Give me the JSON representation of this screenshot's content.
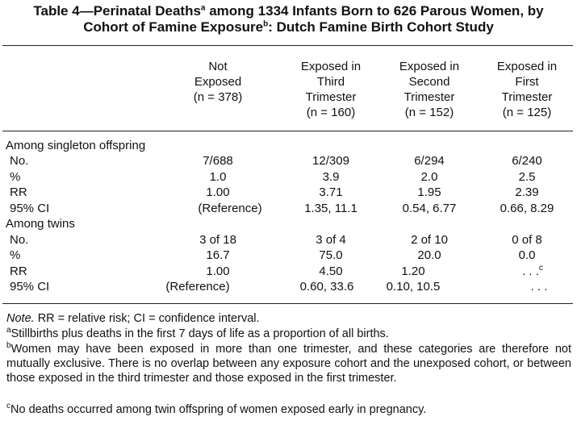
{
  "table": {
    "title_line1_pre": "Table 4—Perinatal Deaths",
    "title_sup_a": "a",
    "title_line1_post": " among 1334 Infants Born to 626 Parous Women, by",
    "title_line2_pre": "Cohort of Famine Exposure",
    "title_sup_b": "b",
    "title_line2_post": ": Dutch Famine Birth Cohort Study",
    "columns": [
      {
        "l1": "",
        "l2": "Not",
        "l3": "Exposed",
        "n": "(n = 378)"
      },
      {
        "l1": "Exposed in",
        "l2": "Third",
        "l3": "Trimester",
        "n": "(n = 160)"
      },
      {
        "l1": "Exposed in",
        "l2": "Second",
        "l3": "Trimester",
        "n": "(n = 152)"
      },
      {
        "l1": "Exposed in",
        "l2": "First",
        "l3": "Trimester",
        "n": "(n = 125)"
      }
    ],
    "sections": [
      {
        "label": "Among singleton offspring",
        "rows": [
          {
            "label": "No.",
            "values": [
              "7/688",
              "12/309",
              "6/294",
              "6/240"
            ]
          },
          {
            "label": "%",
            "values": [
              "1.0",
              "3.9",
              "2.0",
              "2.5"
            ]
          },
          {
            "label": "RR",
            "values": [
              "1.00",
              "3.71",
              "1.95",
              "2.39"
            ]
          },
          {
            "label": "95% CI",
            "values": [
              "(Reference)",
              "1.35, 11.1",
              "0.54, 6.77",
              "0.66, 8.29"
            ]
          }
        ]
      },
      {
        "label": "Among twins",
        "rows": [
          {
            "label": "No.",
            "values": [
              "3 of 18",
              "3 of 4",
              "2 of 10",
              "0 of 8"
            ]
          },
          {
            "label": "%",
            "values": [
              "16.7",
              "75.0",
              "20.0",
              "0.0"
            ]
          },
          {
            "label": "RR",
            "values": [
              "1.00",
              "4.50",
              "1.20",
              ". . ."
            ],
            "sup_last": "c"
          },
          {
            "label": "95% CI",
            "values": [
              "(Reference)",
              "0.60, 33.6",
              "0.10, 10.5",
              ". . ."
            ]
          }
        ]
      }
    ],
    "notes": {
      "note_label": "Note.",
      "note_text": " RR = relative risk; CI = confidence interval.",
      "a_mark": "a",
      "a_text": "Stillbirths plus deaths in the first 7 days of life as a proportion of all births.",
      "b_mark": "b",
      "b_text": "Women may have been exposed in more than one trimester, and these categories are therefore not mutually exclusive. There is no overlap between any exposure cohort and the unexposed cohort, or between those exposed in the third trimester and those exposed in the first trimester.",
      "c_mark": "c",
      "c_text": "No deaths occurred among twin offspring of women exposed early in pregnancy."
    }
  }
}
